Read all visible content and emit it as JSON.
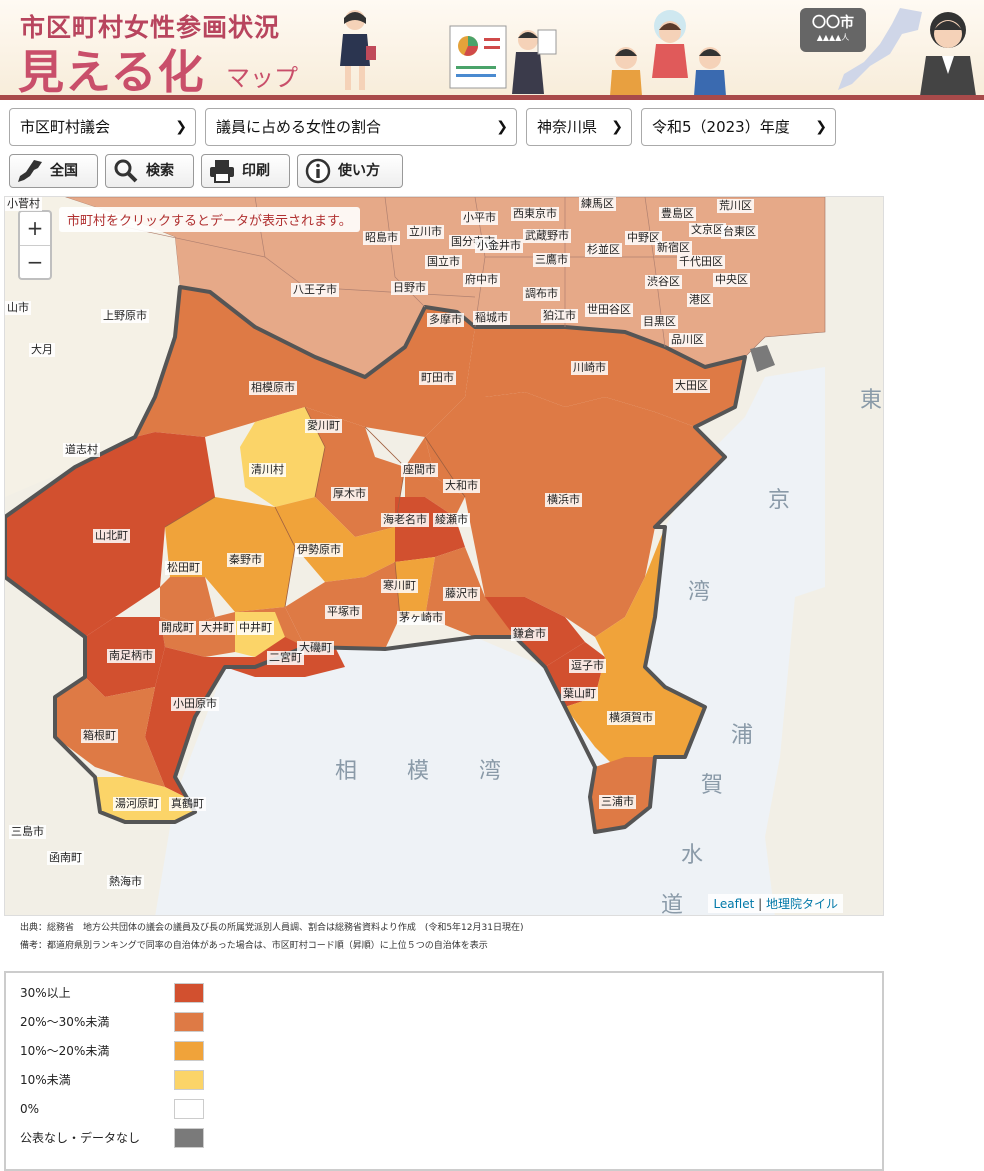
{
  "header": {
    "title_top": "市区町村女性参画状況",
    "title_main": "見える化",
    "title_sub": "マップ",
    "sign_city": "〇〇市",
    "sign_people": "▲▲▲▲人"
  },
  "selects": {
    "category": "市区町村議会",
    "indicator": "議員に占める女性の割合",
    "prefecture": "神奈川県",
    "year": "令和5（2023）年度"
  },
  "toolbar": {
    "national": "全国",
    "search": "検索",
    "print": "印刷",
    "howto": "使い方"
  },
  "map": {
    "hint": "市町村をクリックするとデータが表示されます。",
    "zoom_in": "+",
    "zoom_out": "−",
    "attribution_leaflet": "Leaflet",
    "attribution_sep": " | ",
    "attribution_tiles": "地理院タイル",
    "sea_sagami": "相　模　湾",
    "sea_tokyo": "東京湾",
    "sea_uraga": "浦賀水道",
    "labels": [
      {
        "name": "小平市"
      },
      {
        "name": "西東京市"
      },
      {
        "name": "練馬区"
      },
      {
        "name": "豊島区"
      },
      {
        "name": "荒川区"
      },
      {
        "name": "昭島市"
      },
      {
        "name": "立川市"
      },
      {
        "name": "国分寺市"
      },
      {
        "name": "小金井市"
      },
      {
        "name": "武蔵野市"
      },
      {
        "name": "中野区"
      },
      {
        "name": "文京区"
      },
      {
        "name": "台東区"
      },
      {
        "name": "国立市"
      },
      {
        "name": "三鷹市"
      },
      {
        "name": "杉並区"
      },
      {
        "name": "新宿区"
      },
      {
        "name": "千代田区"
      },
      {
        "name": "府中市"
      },
      {
        "name": "渋谷区"
      },
      {
        "name": "中央区"
      },
      {
        "name": "八王子市"
      },
      {
        "name": "日野市"
      },
      {
        "name": "調布市"
      },
      {
        "name": "港区"
      },
      {
        "name": "上野原市"
      },
      {
        "name": "多摩市"
      },
      {
        "name": "稲城市"
      },
      {
        "name": "狛江市"
      },
      {
        "name": "世田谷区"
      },
      {
        "name": "目黒区"
      },
      {
        "name": "品川区"
      },
      {
        "name": "町田市"
      },
      {
        "name": "川崎市"
      },
      {
        "name": "相模原市"
      },
      {
        "name": "大田区"
      },
      {
        "name": "愛川町"
      },
      {
        "name": "道志村"
      },
      {
        "name": "清川村"
      },
      {
        "name": "座間市"
      },
      {
        "name": "大和市"
      },
      {
        "name": "厚木市"
      },
      {
        "name": "横浜市"
      },
      {
        "name": "海老名市"
      },
      {
        "name": "綾瀬市"
      },
      {
        "name": "山北町"
      },
      {
        "name": "伊勢原市"
      },
      {
        "name": "秦野市"
      },
      {
        "name": "松田町"
      },
      {
        "name": "寒川町"
      },
      {
        "name": "藤沢市"
      },
      {
        "name": "平塚市"
      },
      {
        "name": "茅ヶ崎市"
      },
      {
        "name": "開成町"
      },
      {
        "name": "大井町"
      },
      {
        "name": "中井町"
      },
      {
        "name": "鎌倉市"
      },
      {
        "name": "大磯町"
      },
      {
        "name": "南足柄市"
      },
      {
        "name": "二宮町"
      },
      {
        "name": "逗子市"
      },
      {
        "name": "葉山町"
      },
      {
        "name": "小田原市"
      },
      {
        "name": "横須賀市"
      },
      {
        "name": "箱根町"
      },
      {
        "name": "湯河原町"
      },
      {
        "name": "真鶴町"
      },
      {
        "name": "三浦市"
      },
      {
        "name": "三島市"
      },
      {
        "name": "函南町"
      },
      {
        "name": "熱海市"
      },
      {
        "name": "小菅村"
      },
      {
        "name": "山市"
      },
      {
        "name": "大月"
      }
    ],
    "colors": {
      "over30": "#d2502f",
      "20to30": "#de7a45",
      "10to20": "#f0a33a",
      "under10": "#fbd468",
      "zero": "#ffffff",
      "nodata": "#7a7a7a",
      "tokyo": "#e6a988",
      "boundary": "#555555"
    }
  },
  "notes": {
    "source": "出典：総務省　地方公共団体の議会の議員及び長の所属党派別人員調、割合は総務省資料より作成　(令和5年12月31日現在)",
    "remark": "備考：都道府県別ランキングで同率の自治体があった場合は、市区町村コード順（昇順）に上位５つの自治体を表示"
  },
  "legend": [
    {
      "label": "30%以上",
      "color": "#d2502f"
    },
    {
      "label": "20%～30%未満",
      "color": "#de7a45"
    },
    {
      "label": "10%～20%未満",
      "color": "#f0a33a"
    },
    {
      "label": "10%未満",
      "color": "#fbd468"
    },
    {
      "label": "0%",
      "color": "#ffffff"
    },
    {
      "label": "公表なし・データなし",
      "color": "#7a7a7a"
    }
  ]
}
